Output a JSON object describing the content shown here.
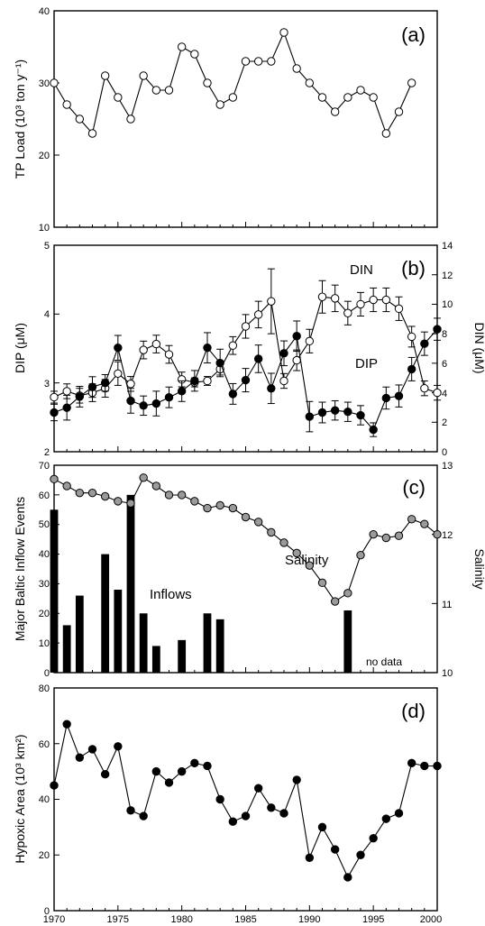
{
  "x_ticks": [
    "1970",
    "1975",
    "1980",
    "1985",
    "1990",
    "1995",
    "2000"
  ],
  "chart_data": [
    {
      "type": "line",
      "panel_label": "(a)",
      "ylabel": "TP Load (10³ ton y⁻¹)",
      "ylim": [
        10,
        40
      ],
      "xlim": [
        1970,
        2000
      ],
      "y_ticks": [
        "10",
        "20",
        "30",
        "40"
      ],
      "series": [
        {
          "marker": "open-circle",
          "x": [
            1970,
            1971,
            1972,
            1973,
            1974,
            1975,
            1976,
            1977,
            1978,
            1979,
            1980,
            1981,
            1982,
            1983,
            1984,
            1985,
            1986,
            1987,
            1988,
            1989,
            1990,
            1991,
            1992,
            1993,
            1994,
            1995,
            1996,
            1997,
            1998
          ],
          "values": [
            30,
            27,
            25,
            23,
            31,
            28,
            25,
            31,
            29,
            29,
            35,
            34,
            30,
            27,
            28,
            33,
            33,
            33,
            37,
            32,
            30,
            28,
            26,
            28,
            29,
            28,
            23,
            26,
            30
          ]
        }
      ]
    },
    {
      "type": "line",
      "panel_label": "(b)",
      "ylabel": "DIP (μM)",
      "ylabel_right": "DIN (μM)",
      "ylim": [
        2,
        5
      ],
      "ylim_right": [
        0,
        14
      ],
      "xlim": [
        1970,
        2000
      ],
      "y_ticks": [
        "2",
        "3",
        "4",
        "5"
      ],
      "y_ticks_right": [
        "0",
        "2",
        "4",
        "6",
        "8",
        "10",
        "12",
        "14"
      ],
      "series": [
        {
          "name": "DIN",
          "axis": "right",
          "marker": "open-circle",
          "x": [
            1970,
            1971,
            1972,
            1973,
            1974,
            1975,
            1976,
            1977,
            1978,
            1979,
            1980,
            1981,
            1982,
            1983,
            1984,
            1985,
            1986,
            1987,
            1988,
            1989,
            1990,
            1991,
            1992,
            1993,
            1994,
            1995,
            1996,
            1997,
            1998,
            1999,
            2000
          ],
          "values": [
            3.7,
            4.1,
            3.8,
            4.0,
            4.3,
            5.3,
            4.6,
            6.9,
            7.3,
            6.6,
            4.9,
            4.7,
            4.8,
            5.6,
            7.2,
            8.5,
            9.3,
            10.2,
            4.8,
            6.2,
            7.5,
            10.5,
            10.4,
            9.4,
            10.0,
            10.3,
            10.3,
            9.7,
            7.8,
            4.3,
            4.0
          ],
          "errors": [
            0.4,
            0.5,
            0.5,
            0.6,
            0.6,
            0.8,
            0.5,
            0.6,
            0.6,
            0.6,
            0.5,
            0.3,
            0.3,
            0.4,
            0.6,
            0.8,
            0.9,
            2.2,
            0.5,
            0.7,
            0.8,
            1.1,
            0.9,
            0.8,
            0.8,
            0.8,
            0.8,
            0.8,
            0.7,
            0.5,
            0.5
          ]
        },
        {
          "name": "DIP",
          "axis": "left",
          "marker": "filled-circle",
          "x": [
            1970,
            1971,
            1972,
            1973,
            1974,
            1975,
            1976,
            1977,
            1978,
            1979,
            1980,
            1981,
            1982,
            1983,
            1984,
            1985,
            1986,
            1987,
            1988,
            1989,
            1990,
            1991,
            1992,
            1993,
            1994,
            1995,
            1996,
            1997,
            1998,
            1999,
            2000
          ],
          "values": [
            2.57,
            2.64,
            2.8,
            2.94,
            3.0,
            3.51,
            2.74,
            2.67,
            2.7,
            2.79,
            2.88,
            3.03,
            3.51,
            3.29,
            2.84,
            3.04,
            3.35,
            2.92,
            3.43,
            3.68,
            2.51,
            2.57,
            2.6,
            2.58,
            2.53,
            2.32,
            2.78,
            2.81,
            3.2,
            3.57,
            3.78
          ],
          "errors": [
            0.12,
            0.18,
            0.15,
            0.15,
            0.12,
            0.18,
            0.18,
            0.14,
            0.18,
            0.15,
            0.15,
            0.15,
            0.22,
            0.2,
            0.15,
            0.17,
            0.2,
            0.22,
            0.18,
            0.22,
            0.22,
            0.15,
            0.14,
            0.14,
            0.14,
            0.1,
            0.16,
            0.16,
            0.17,
            0.17,
            0.16
          ]
        }
      ]
    },
    {
      "type": "bar",
      "panel_label": "(c)",
      "ylabel": "Major Baltic Inflow Events",
      "ylabel_right": "Salinity",
      "ylim": [
        0,
        70
      ],
      "ylim_right": [
        10,
        13
      ],
      "xlim": [
        1970,
        2000
      ],
      "y_ticks": [
        "0",
        "10",
        "20",
        "30",
        "40",
        "50",
        "60",
        "70"
      ],
      "y_ticks_right": [
        "10",
        "11",
        "12",
        "13"
      ],
      "annotations": [
        "Inflows",
        "Salinity",
        "no data"
      ],
      "series": [
        {
          "name": "Inflows",
          "marker": "bar",
          "x": [
            1970,
            1971,
            1972,
            1974,
            1975,
            1976,
            1977,
            1978,
            1980,
            1982,
            1983,
            1993
          ],
          "values": [
            55,
            16,
            26,
            40,
            28,
            60,
            20,
            9,
            11,
            20,
            18,
            21
          ]
        },
        {
          "name": "Salinity",
          "axis": "right",
          "marker": "grey-circle",
          "x": [
            1970,
            1971,
            1972,
            1973,
            1974,
            1975,
            1976,
            1977,
            1978,
            1979,
            1980,
            1981,
            1982,
            1983,
            1984,
            1985,
            1986,
            1987,
            1988,
            1989,
            1990,
            1991,
            1992,
            1993,
            1994,
            1995,
            1996,
            1997,
            1998,
            1999,
            2000
          ],
          "values": [
            12.8,
            12.7,
            12.6,
            12.6,
            12.55,
            12.48,
            12.45,
            12.82,
            12.7,
            12.57,
            12.57,
            12.48,
            12.38,
            12.42,
            12.38,
            12.25,
            12.18,
            12.03,
            11.88,
            11.73,
            11.55,
            11.3,
            11.03,
            11.15,
            11.7,
            12.0,
            11.95,
            11.98,
            12.22,
            12.15,
            12.0
          ]
        }
      ]
    },
    {
      "type": "line",
      "panel_label": "(d)",
      "ylabel": "Hypoxic Area (10³ km²)",
      "ylim": [
        0,
        80
      ],
      "xlim": [
        1970,
        2000
      ],
      "y_ticks": [
        "0",
        "20",
        "40",
        "60",
        "80"
      ],
      "series": [
        {
          "marker": "filled-circle",
          "x": [
            1970,
            1971,
            1972,
            1973,
            1974,
            1975,
            1976,
            1977,
            1978,
            1979,
            1980,
            1981,
            1982,
            1983,
            1984,
            1985,
            1986,
            1987,
            1988,
            1989,
            1990,
            1991,
            1992,
            1993,
            1994,
            1995,
            1996,
            1997,
            1998,
            1999,
            2000
          ],
          "values": [
            45,
            67,
            55,
            58,
            49,
            59,
            36,
            34,
            50,
            46,
            50,
            53,
            52,
            40,
            32,
            34,
            44,
            37,
            35,
            47,
            19,
            30,
            22,
            12,
            20,
            26,
            33,
            35,
            53,
            52,
            52
          ]
        }
      ]
    }
  ]
}
